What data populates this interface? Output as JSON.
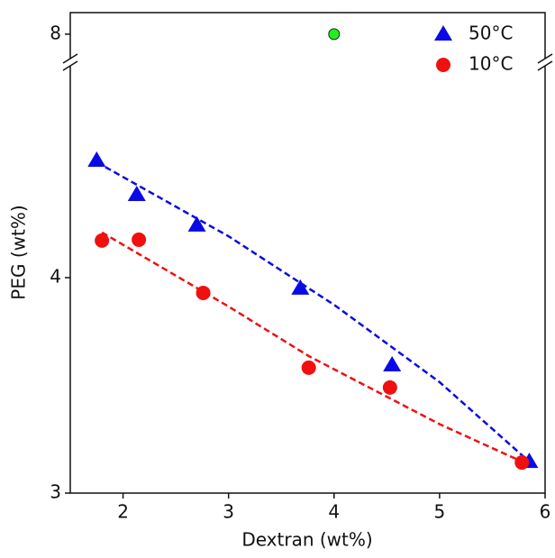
{
  "chart_data": {
    "type": "scatter",
    "xlabel": "Dextran (wt%)",
    "ylabel": "PEG (wt%)",
    "xlim": [
      1.5,
      6
    ],
    "xticks": [
      2,
      3,
      4,
      5,
      6
    ],
    "ylim": [
      3,
      8.1
    ],
    "y_break": [
      5,
      7.87
    ],
    "yticks": [
      3,
      4,
      8
    ],
    "series": [
      {
        "name": "50°C",
        "color": "#0a0ae6",
        "marker": "triangle",
        "x": [
          1.75,
          2.13,
          2.7,
          3.68,
          4.55,
          5.85
        ],
        "values": [
          4.544,
          4.385,
          4.243,
          3.95,
          3.594,
          3.146
        ]
      },
      {
        "name": "10°C",
        "color": "#f01010",
        "marker": "circle",
        "x": [
          1.8,
          2.15,
          2.76,
          3.76,
          4.53,
          5.78
        ],
        "values": [
          4.172,
          4.176,
          3.929,
          3.582,
          3.49,
          3.142
        ]
      }
    ],
    "fits": [
      {
        "color": "#0a0ae6",
        "x": [
          1.75,
          3,
          4,
          5,
          5.85
        ],
        "values": [
          4.536,
          4.192,
          3.874,
          3.515,
          3.146
        ]
      },
      {
        "color": "#f01010",
        "x": [
          1.8,
          3,
          3.76,
          5,
          5.8
        ],
        "values": [
          4.21,
          3.866,
          3.636,
          3.32,
          3.142
        ]
      }
    ],
    "extra_points": {
      "color": "#22ee22",
      "x": [
        4
      ],
      "values": [
        8
      ]
    },
    "legend": "upper right"
  }
}
